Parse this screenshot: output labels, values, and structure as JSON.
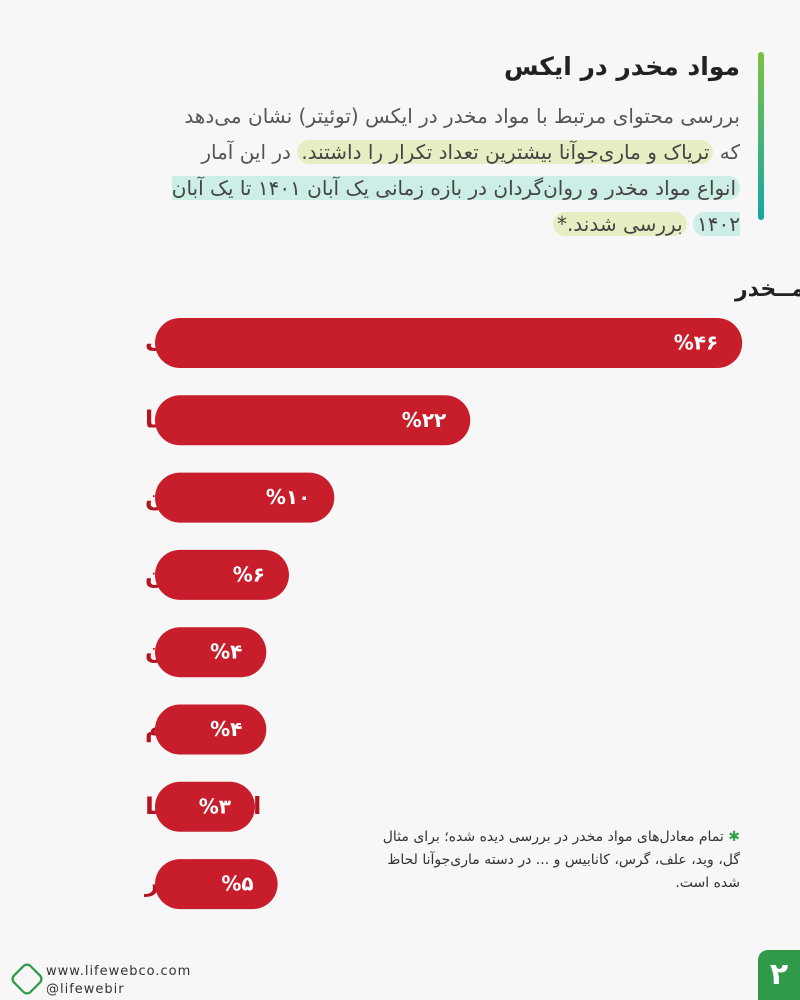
{
  "chart_data": {
    "type": "bar",
    "header_title": "مواد مخدر در ایکس",
    "description": [
      "بررسی محتوای مرتبط با مواد مخدر در ایکس (توئیتر) نشان می‌دهد که ",
      "تریاک و ماری‌جوآنا بیشترین تعداد تکرار را داشتند.",
      " در این آمار ",
      "انواع مواد مخدر و روان‌گردان در بازه زمانی یک آبان ۱۴۰۱ تا یک آبان ۱۴۰۲",
      "بررسی شدند.*"
    ],
    "title": "درصـد از مجموع محتوای مرتبط با مـــواد مــخدر",
    "categories": [
      "تریاک",
      "ماری‌جوآنا",
      "کوکایین",
      "هرویین",
      "متادون",
      "ماشروم",
      "اسید LSD",
      "سایر"
    ],
    "values": [
      46,
      22,
      10,
      6,
      4,
      4,
      3,
      5
    ],
    "value_labels": [
      "%۴۶",
      "%۲۲",
      "%۱۰",
      "%۶",
      "%۴",
      "%۴",
      "%۳",
      "%۵"
    ],
    "color": "#c81e2c",
    "footnote": "تمام معادل‌های مواد مخدر در بررسی دیده شده؛ برای مثال گل، وید، علف، گرس، کانابیس و ... در دسته ماری‌جوآنا لحاظ شده است.",
    "website": "www.lifewebco.com",
    "social": "@lifewebir",
    "page_number": "۲"
  }
}
